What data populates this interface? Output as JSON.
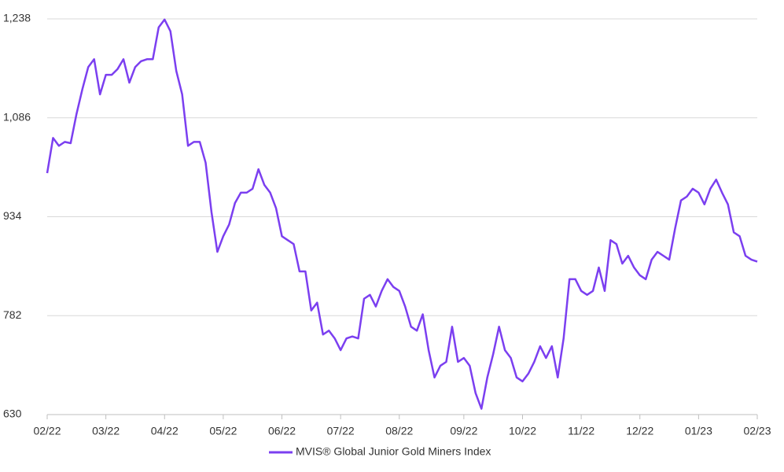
{
  "chart_data": {
    "type": "line",
    "series": [
      {
        "name": "MVIS® Global Junior Gold Miners Index",
        "color": "#7b3ff0",
        "values": [
          1001,
          1055,
          1043,
          1049,
          1047,
          1092,
          1130,
          1164,
          1176,
          1122,
          1152,
          1152,
          1161,
          1176,
          1140,
          1164,
          1173,
          1176,
          1176,
          1225,
          1237,
          1219,
          1158,
          1122,
          1043,
          1049,
          1049,
          1017,
          941,
          880,
          904,
          922,
          955,
          971,
          971,
          977,
          1007,
          983,
          971,
          947,
          904,
          898,
          892,
          850,
          850,
          790,
          802,
          753,
          759,
          747,
          729,
          747,
          750,
          747,
          808,
          814,
          796,
          820,
          838,
          826,
          820,
          796,
          765,
          759,
          784,
          729,
          687,
          705,
          711,
          765,
          711,
          717,
          705,
          663,
          639,
          687,
          723,
          765,
          729,
          717,
          687,
          681,
          693,
          711,
          735,
          717,
          735,
          687,
          747,
          838,
          838,
          820,
          814,
          820,
          856,
          820,
          898,
          892,
          862,
          874,
          856,
          844,
          838,
          868,
          880,
          874,
          868,
          916,
          959,
          965,
          977,
          971,
          953,
          977,
          991,
          971,
          953,
          910,
          904,
          874,
          868,
          865
        ]
      }
    ],
    "xlim": [
      0,
      121
    ],
    "xticks": [
      {
        "value": 0,
        "label": "02/22"
      },
      {
        "value": 10,
        "label": "03/22"
      },
      {
        "value": 20,
        "label": "04/22"
      },
      {
        "value": 30,
        "label": "05/22"
      },
      {
        "value": 40,
        "label": "06/22"
      },
      {
        "value": 50,
        "label": "07/22"
      },
      {
        "value": 60,
        "label": "08/22"
      },
      {
        "value": 71,
        "label": "09/22"
      },
      {
        "value": 81,
        "label": "10/22"
      },
      {
        "value": 91,
        "label": "11/22"
      },
      {
        "value": 101,
        "label": "12/22"
      },
      {
        "value": 111,
        "label": "01/23"
      },
      {
        "value": 121,
        "label": "02/23"
      }
    ],
    "ylim": [
      630,
      1238
    ],
    "yticks": [
      630,
      782,
      934,
      {
        "value": 1086,
        "label": "1,086"
      },
      {
        "value": 1238,
        "label": "1,238"
      }
    ],
    "grid": true,
    "legend": "bottom"
  }
}
